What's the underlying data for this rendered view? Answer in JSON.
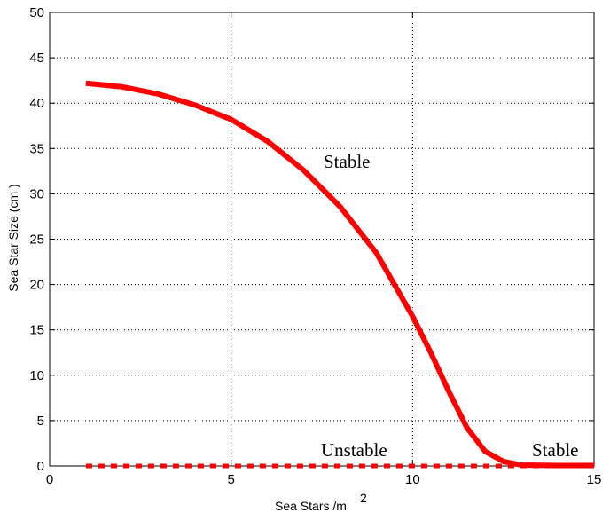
{
  "chart_data": {
    "type": "line",
    "xlabel": "Sea Stars /m",
    "xlabel_sup": "2",
    "ylabel": "Sea Star Size (cm )",
    "xlim": [
      0,
      15
    ],
    "xticks": [
      0,
      5,
      10,
      15
    ],
    "ylim": [
      0,
      50
    ],
    "yticks": [
      0,
      5,
      10,
      15,
      20,
      25,
      30,
      35,
      40,
      45,
      50
    ],
    "grid": true,
    "series": [
      {
        "color": "#ff0000",
        "style": "solid",
        "x": [
          1,
          2,
          3,
          4,
          5,
          6,
          7,
          8,
          9,
          10,
          10.5,
          11,
          11.5,
          12,
          12.5,
          13,
          14,
          15
        ],
        "values": [
          42.2,
          41.8,
          41,
          39.8,
          38.2,
          35.8,
          32.6,
          28.6,
          23.5,
          16.5,
          12.5,
          8.2,
          4.2,
          1.6,
          0.5,
          0.1,
          0.05,
          0.05
        ]
      },
      {
        "color": "#ff0000",
        "style": "dashed",
        "x": [
          1,
          15
        ],
        "values": [
          0,
          0
        ]
      }
    ],
    "annotations": [
      "Stable",
      "Unstable",
      "Stable"
    ]
  }
}
